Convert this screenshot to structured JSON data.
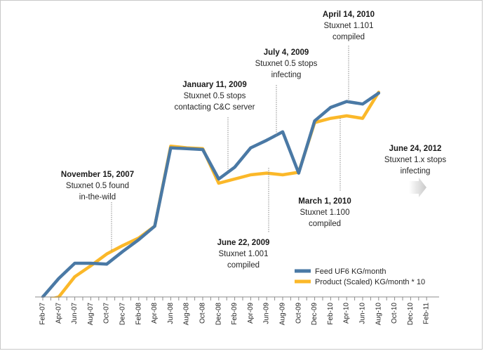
{
  "chart_data": {
    "type": "line",
    "x_tick_labels": [
      "Feb-07",
      "Apr-07",
      "Jun-07",
      "Aug-07",
      "Oct-07",
      "Dec-07",
      "Feb-08",
      "Apr-08",
      "Jun-08",
      "Aug-08",
      "Oct-08",
      "Dec-08",
      "Feb-09",
      "Apr-09",
      "Jun-09",
      "Aug-09",
      "Oct-09",
      "Dec-09",
      "Feb-10",
      "Apr-10",
      "Jun-10",
      "Aug-10",
      "Oct-10",
      "Dec-10",
      "Feb-11"
    ],
    "series": [
      {
        "name": "Feed UF6 KG/month",
        "color": "#4a79a5",
        "points": [
          [
            0,
            0
          ],
          [
            1,
            22
          ],
          [
            2,
            40
          ],
          [
            3,
            40
          ],
          [
            4,
            39
          ],
          [
            5,
            54
          ],
          [
            6,
            68
          ],
          [
            7,
            84
          ],
          [
            8,
            177
          ],
          [
            9,
            176
          ],
          [
            10,
            175
          ],
          [
            11,
            140
          ],
          [
            12,
            154
          ],
          [
            13,
            177
          ],
          [
            14,
            186
          ],
          [
            15,
            196
          ],
          [
            16,
            147
          ],
          [
            17,
            209
          ],
          [
            18,
            225
          ],
          [
            19,
            232
          ],
          [
            20,
            229
          ],
          [
            21,
            242
          ]
        ]
      },
      {
        "name": "Product (Scaled) KG/month * 10",
        "color": "#fbb829",
        "points": [
          [
            0,
            -5
          ],
          [
            1,
            0
          ],
          [
            2,
            24
          ],
          [
            3,
            37
          ],
          [
            4,
            51
          ],
          [
            5,
            61
          ],
          [
            6,
            70
          ],
          [
            7,
            84
          ],
          [
            8,
            179
          ],
          [
            9,
            177
          ],
          [
            10,
            176
          ],
          [
            11,
            135
          ],
          [
            12,
            140
          ],
          [
            13,
            145
          ],
          [
            14,
            147
          ],
          [
            15,
            145
          ],
          [
            16,
            148
          ],
          [
            17,
            207
          ],
          [
            18,
            212
          ],
          [
            19,
            215
          ],
          [
            20,
            212
          ],
          [
            21,
            243
          ]
        ]
      }
    ],
    "ylim": [
      0,
      260
    ],
    "grid": false,
    "legend_position": "bottom-right",
    "annotations": [
      {
        "id": "nov2007",
        "date": "November 15, 2007",
        "lines": [
          "Stuxnet 0.5 found",
          "in-the-wild"
        ]
      },
      {
        "id": "jan2009",
        "date": "January 11, 2009",
        "lines": [
          "Stuxnet 0.5 stops",
          "contacting C&C server"
        ]
      },
      {
        "id": "jul2009",
        "date": "July 4, 2009",
        "lines": [
          "Stuxnet 0.5 stops",
          "infecting"
        ]
      },
      {
        "id": "jun2009",
        "date": "June 22, 2009",
        "lines": [
          "Stuxnet 1.001",
          "compiled"
        ]
      },
      {
        "id": "apr2010",
        "date": "April 14, 2010",
        "lines": [
          "Stuxnet 1.101",
          "compiled"
        ]
      },
      {
        "id": "mar2010",
        "date": "March 1, 2010",
        "lines": [
          "Stuxnet 1.100",
          "compiled"
        ]
      },
      {
        "id": "jun2012",
        "date": "June 24, 2012",
        "lines": [
          "Stuxnet 1.x stops",
          "infecting"
        ]
      }
    ]
  }
}
